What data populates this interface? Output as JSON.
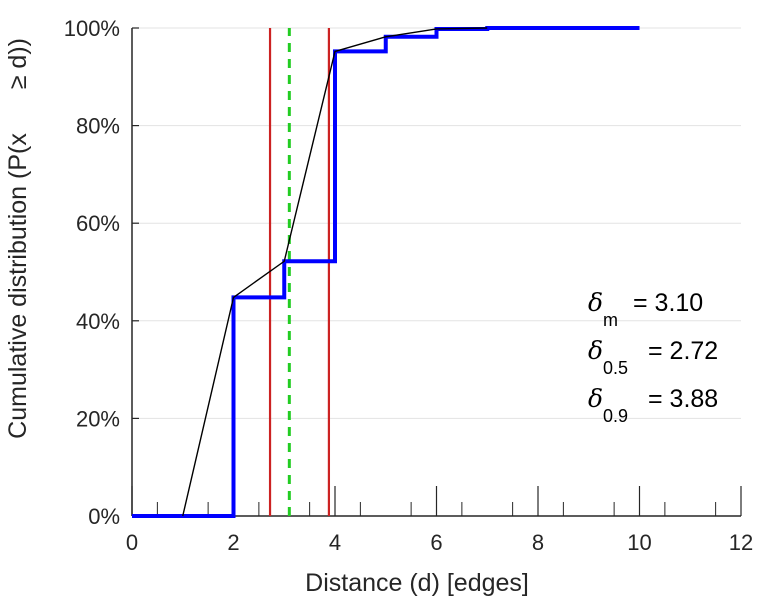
{
  "chart_data": {
    "type": "line",
    "xlabel": "Distance (d) [edges]",
    "ylabel": "Cumulative distribution (P(x",
    "ylabel_suffix": "≥ d))",
    "xlim": [
      0,
      12
    ],
    "ylim": [
      0,
      100
    ],
    "x_ticks": [
      "0",
      "2",
      "4",
      "6",
      "8",
      "10",
      "12"
    ],
    "y_ticks": [
      "0%",
      "20%",
      "40%",
      "60%",
      "80%",
      "100%"
    ],
    "grid": "horizontal",
    "series": [
      {
        "style": "step",
        "color": "#0000ff",
        "x": [
          0,
          1,
          2,
          3,
          4,
          5,
          6,
          7,
          8,
          9,
          10
        ],
        "y": [
          0,
          0,
          44.8,
          52.2,
          95.2,
          98.2,
          99.8,
          100,
          100,
          100,
          100
        ]
      },
      {
        "style": "line",
        "color": "#000000",
        "x": [
          1,
          2,
          3,
          4,
          5,
          6,
          7
        ],
        "y": [
          0,
          44.8,
          52.2,
          95.2,
          98.2,
          99.8,
          100
        ]
      }
    ],
    "vlines": [
      {
        "x": 3.1,
        "style": "dashed",
        "color": "#22cc22"
      },
      {
        "x": 2.72,
        "style": "solid",
        "color": "#cc2222"
      },
      {
        "x": 3.88,
        "style": "solid",
        "color": "#cc2222"
      }
    ],
    "annotations": [
      {
        "symbol": "δ",
        "sub": "m",
        "value": "= 3.10"
      },
      {
        "symbol": "δ",
        "sub": "0.5",
        "value": "= 2.72"
      },
      {
        "symbol": "δ",
        "sub": "0.9",
        "value": "= 3.88"
      }
    ]
  }
}
